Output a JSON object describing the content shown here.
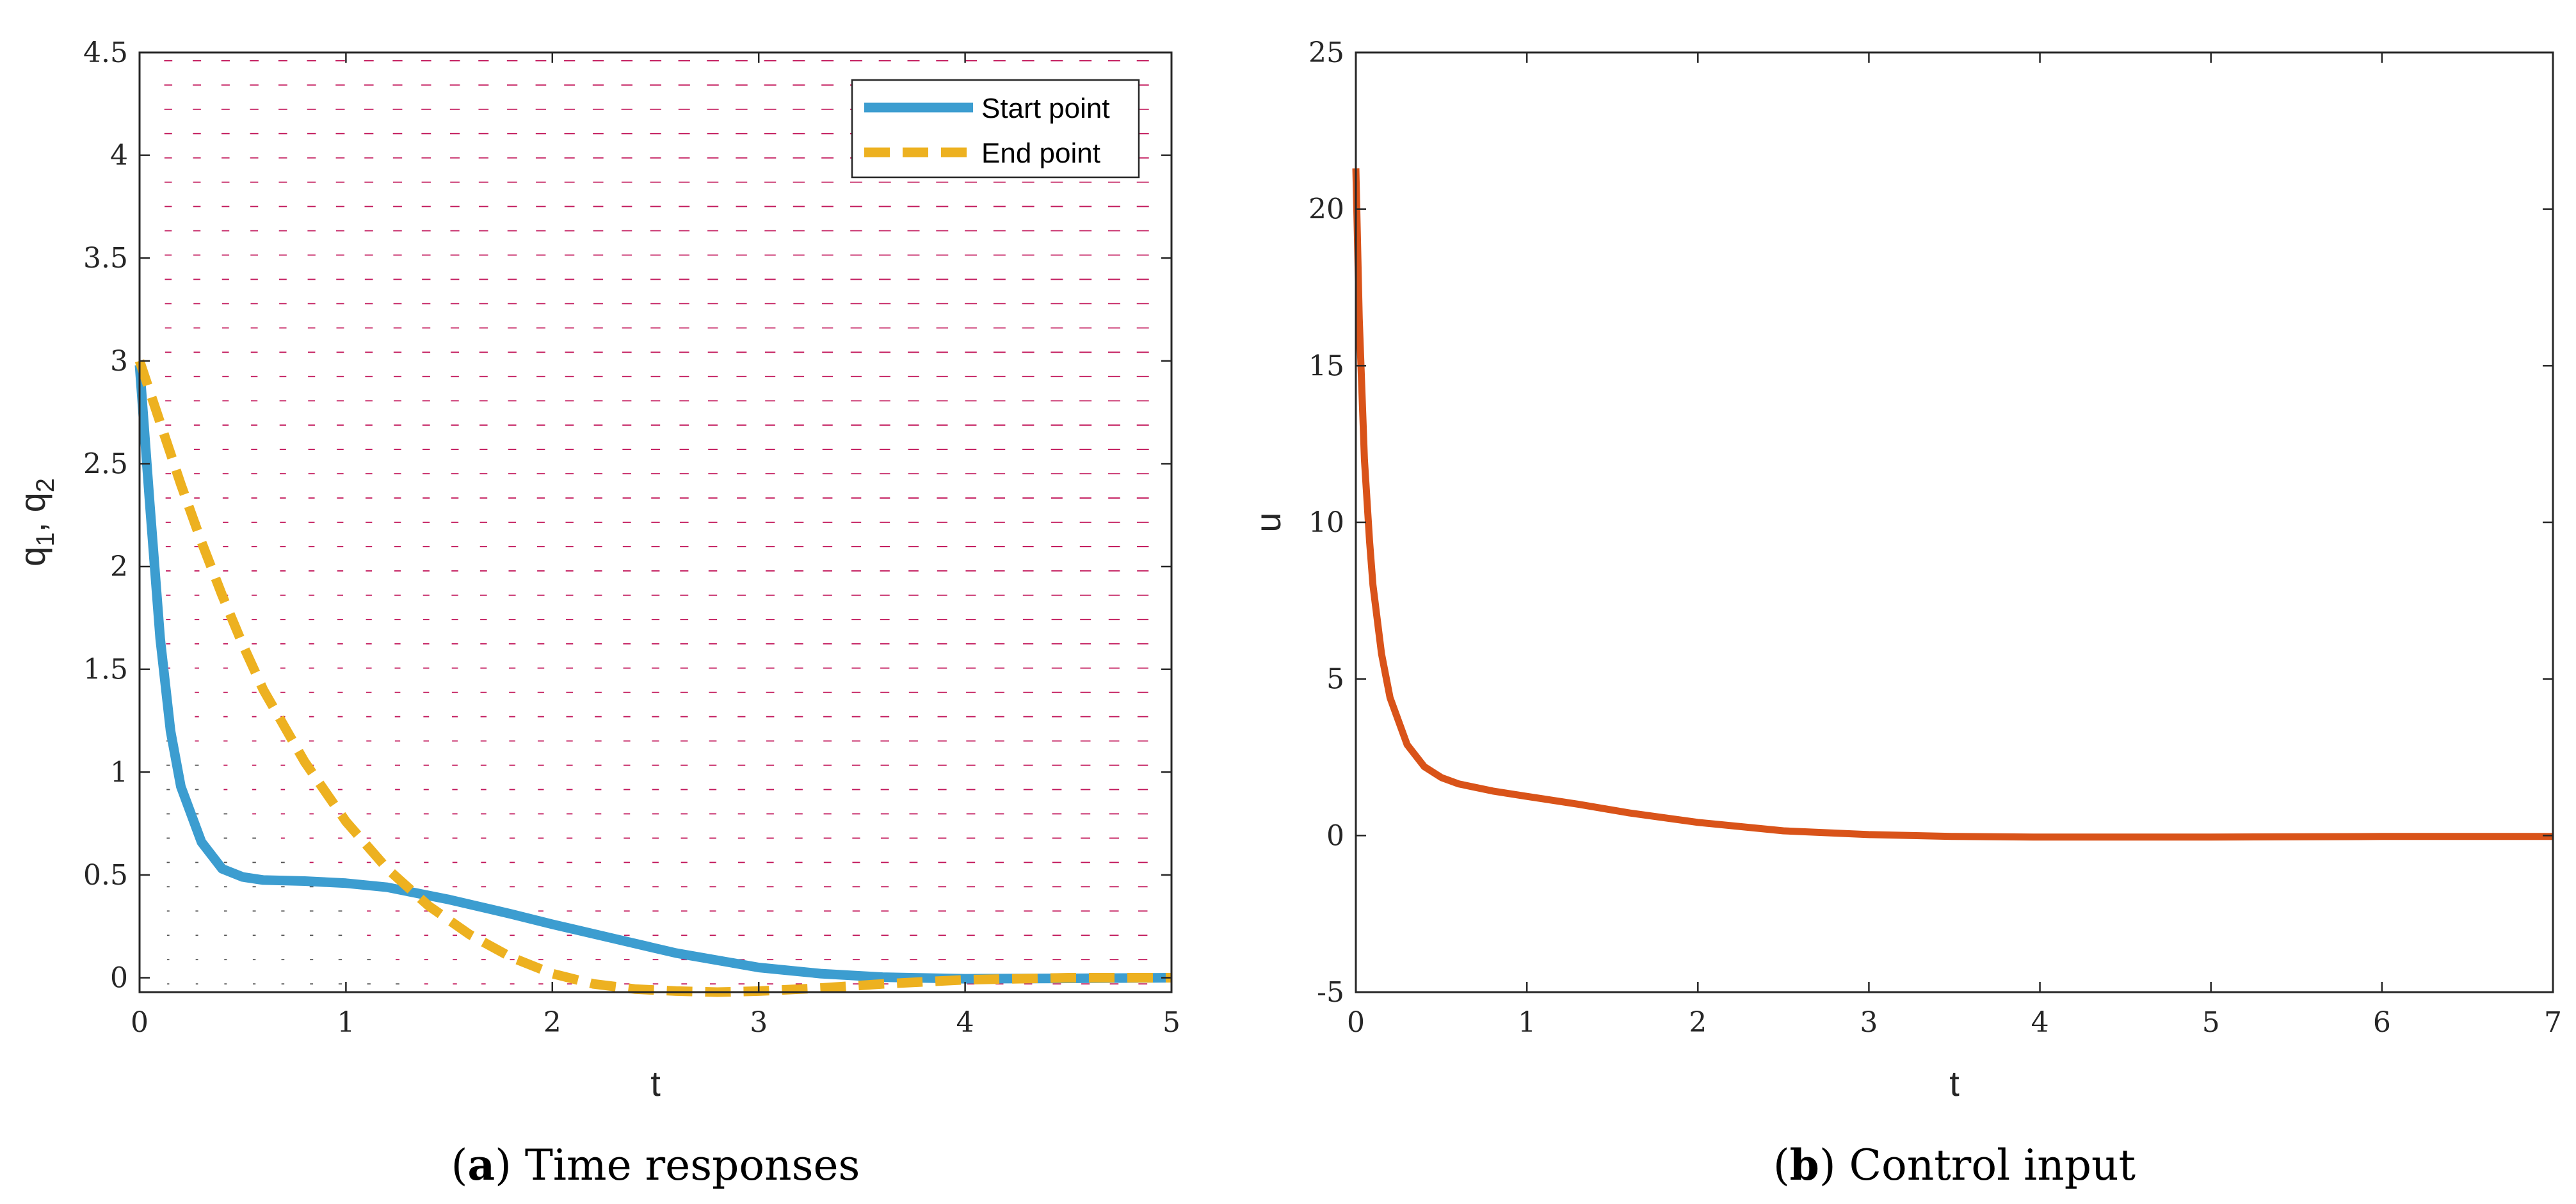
{
  "colors": {
    "start": "#3C9DD0",
    "end": "#EDB120",
    "control": "#D95319",
    "arrows": "#C2185B",
    "axis": "#262626"
  },
  "chart_data": [
    {
      "type": "line",
      "panel": "a",
      "caption_letter": "a",
      "caption_text": " Time responses",
      "xlabel": "t",
      "ylabel": "q",
      "ylabel_sub1": "1",
      "ylabel_sep": ", q",
      "ylabel_sub2": "2",
      "xlim": [
        0,
        5
      ],
      "ylim": [
        -0.07,
        4.5
      ],
      "xticks": [
        0,
        1,
        2,
        3,
        4,
        5
      ],
      "xtick_labels": [
        "0",
        "1",
        "2",
        "3",
        "4",
        "5"
      ],
      "yticks": [
        0,
        0.5,
        1,
        1.5,
        2,
        2.5,
        3,
        3.5,
        4,
        4.5
      ],
      "ytick_labels": [
        "0",
        "0.5",
        "1",
        "1.5",
        "2",
        "2.5",
        "3",
        "3.5",
        "4",
        "4.5"
      ],
      "legend_position": "top-right",
      "background": "quiver vector field",
      "series": [
        {
          "name": "Start point",
          "style": "solid",
          "x": [
            0,
            0.05,
            0.1,
            0.15,
            0.2,
            0.3,
            0.4,
            0.5,
            0.6,
            0.8,
            1.0,
            1.2,
            1.5,
            1.8,
            2.0,
            2.3,
            2.6,
            3.0,
            3.3,
            3.6,
            4.0,
            4.5,
            5.0
          ],
          "y": [
            2.98,
            2.3,
            1.65,
            1.2,
            0.93,
            0.66,
            0.53,
            0.49,
            0.475,
            0.47,
            0.46,
            0.44,
            0.38,
            0.31,
            0.26,
            0.19,
            0.12,
            0.05,
            0.02,
            0.003,
            -0.005,
            -0.003,
            0.0
          ]
        },
        {
          "name": "End point",
          "style": "dashed",
          "x": [
            0,
            0.1,
            0.2,
            0.3,
            0.4,
            0.5,
            0.6,
            0.8,
            1.0,
            1.2,
            1.4,
            1.6,
            1.8,
            2.0,
            2.2,
            2.4,
            2.6,
            2.8,
            3.0,
            3.3,
            3.6,
            4.0,
            4.5,
            5.0
          ],
          "y": [
            3.0,
            2.7,
            2.4,
            2.12,
            1.86,
            1.62,
            1.4,
            1.05,
            0.76,
            0.53,
            0.35,
            0.21,
            0.1,
            0.02,
            -0.03,
            -0.055,
            -0.065,
            -0.07,
            -0.065,
            -0.05,
            -0.03,
            -0.01,
            0.0,
            0.0
          ]
        }
      ]
    },
    {
      "type": "line",
      "panel": "b",
      "caption_letter": "b",
      "caption_text": " Control input",
      "xlabel": "t",
      "ylabel": "u",
      "xlim": [
        0,
        7
      ],
      "ylim": [
        -5,
        25
      ],
      "xticks": [
        0,
        1,
        2,
        3,
        4,
        5,
        6,
        7
      ],
      "xtick_labels": [
        "0",
        "1",
        "2",
        "3",
        "4",
        "5",
        "6",
        "7"
      ],
      "yticks": [
        -5,
        0,
        5,
        10,
        15,
        20,
        25
      ],
      "ytick_labels": [
        "-5",
        "0",
        "5",
        "10",
        "15",
        "20",
        "25"
      ],
      "series": [
        {
          "name": "u",
          "style": "solid",
          "x": [
            0,
            0.02,
            0.05,
            0.08,
            0.1,
            0.15,
            0.2,
            0.3,
            0.4,
            0.5,
            0.6,
            0.8,
            1.0,
            1.3,
            1.6,
            2.0,
            2.5,
            3.0,
            3.5,
            4.0,
            5.0,
            6.0,
            7.0
          ],
          "y": [
            21.3,
            16.5,
            12.0,
            9.4,
            8.0,
            5.8,
            4.4,
            2.9,
            2.2,
            1.85,
            1.65,
            1.42,
            1.25,
            1.0,
            0.72,
            0.42,
            0.15,
            0.03,
            -0.03,
            -0.05,
            -0.05,
            -0.03,
            -0.03
          ]
        }
      ]
    }
  ]
}
